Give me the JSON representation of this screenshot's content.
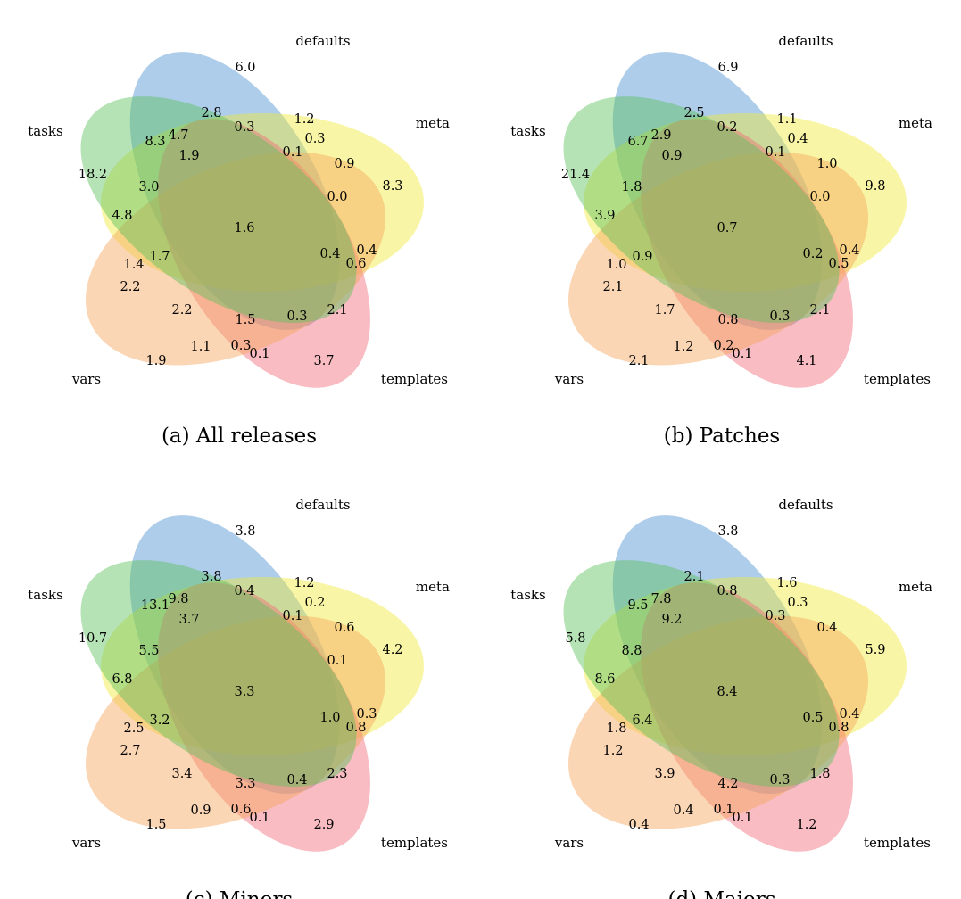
{
  "sets": [
    {
      "key": "defaults",
      "label": "defaults",
      "color": "#4a90d0"
    },
    {
      "key": "meta",
      "label": "meta",
      "color": "#f0ea3a"
    },
    {
      "key": "templates",
      "label": "templates",
      "color": "#f06a78"
    },
    {
      "key": "vars",
      "label": "vars",
      "color": "#f7a55a"
    },
    {
      "key": "tasks",
      "label": "tasks",
      "color": "#5cc05c"
    }
  ],
  "panels": [
    {
      "caption": "(a) All releases",
      "regions": [
        "6.0",
        "2.8",
        "0.3",
        "1.2",
        "0.3",
        "8.3",
        "4.7",
        "1.9",
        "0.1",
        "0.9",
        "18.2",
        "3.0",
        "8.3",
        "0.0",
        "4.8",
        "1.6",
        "1.7",
        "0.4",
        "0.4",
        "1.4",
        "0.6",
        "2.2",
        "2.2",
        "1.5",
        "0.3",
        "2.1",
        "1.1",
        "0.3",
        "0.1",
        "1.9",
        "3.7"
      ]
    },
    {
      "caption": "(b) Patches",
      "regions": [
        "6.9",
        "2.5",
        "0.2",
        "1.1",
        "0.4",
        "6.7",
        "2.9",
        "0.9",
        "0.1",
        "1.0",
        "21.4",
        "1.8",
        "9.8",
        "0.0",
        "3.9",
        "0.7",
        "0.9",
        "0.2",
        "0.4",
        "1.0",
        "0.5",
        "2.1",
        "1.7",
        "0.8",
        "0.3",
        "2.1",
        "1.2",
        "0.2",
        "0.1",
        "2.1",
        "4.1"
      ]
    },
    {
      "caption": "(c) Minors",
      "regions": [
        "3.8",
        "3.8",
        "0.4",
        "1.2",
        "0.2",
        "13.1",
        "9.8",
        "3.7",
        "0.1",
        "0.6",
        "10.7",
        "5.5",
        "4.2",
        "0.1",
        "6.8",
        "3.3",
        "3.2",
        "1.0",
        "0.3",
        "2.5",
        "0.8",
        "2.7",
        "3.4",
        "3.3",
        "0.4",
        "2.3",
        "0.9",
        "0.6",
        "0.1",
        "1.5",
        "2.9"
      ]
    },
    {
      "caption": "(d) Majors",
      "regions": [
        "3.8",
        "2.1",
        "0.8",
        "1.6",
        "0.3",
        "9.5",
        "7.8",
        "9.2",
        "0.3",
        "0.4",
        "5.8",
        "8.8",
        "5.9",
        "",
        "8.6",
        "8.4",
        "6.4",
        "0.5",
        "0.4",
        "1.8",
        "0.8",
        "1.2",
        "3.9",
        "4.2",
        "0.3",
        "1.8",
        "0.4",
        "0.1",
        "0.1",
        "0.4",
        "1.2"
      ]
    }
  ]
}
